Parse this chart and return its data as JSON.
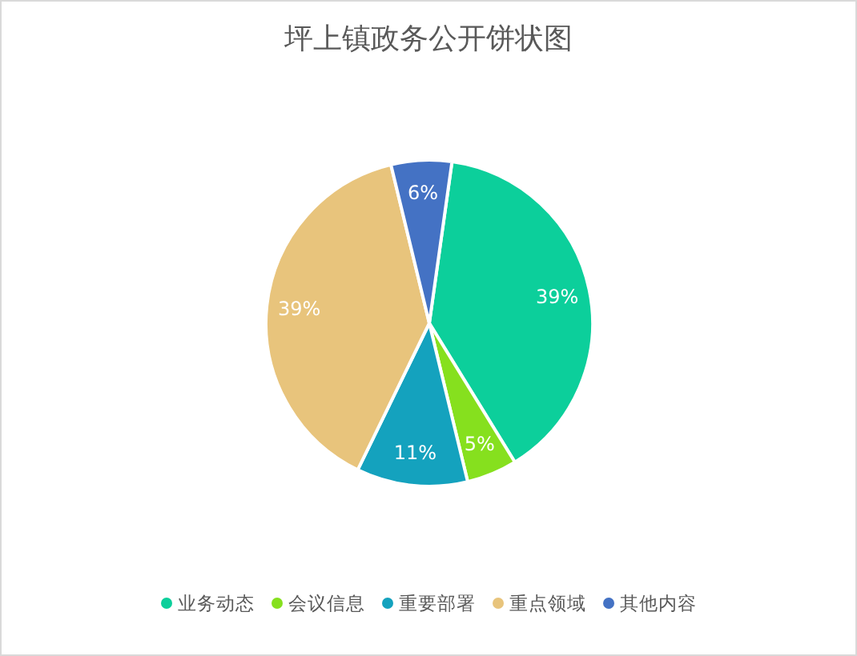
{
  "chart_data": {
    "type": "pie",
    "title": "坪上镇政务公开饼状图",
    "categories": [
      "业务动态",
      "会议信息",
      "重要部署",
      "重点领域",
      "其他内容"
    ],
    "values": [
      39,
      5,
      11,
      39,
      6
    ],
    "colors": [
      "#0ccf9b",
      "#86e01e",
      "#14a2be",
      "#e8c47c",
      "#4472c4"
    ],
    "value_labels": [
      "39%",
      "5%",
      "11%",
      "39%",
      "6%"
    ],
    "legend": "bottom"
  }
}
